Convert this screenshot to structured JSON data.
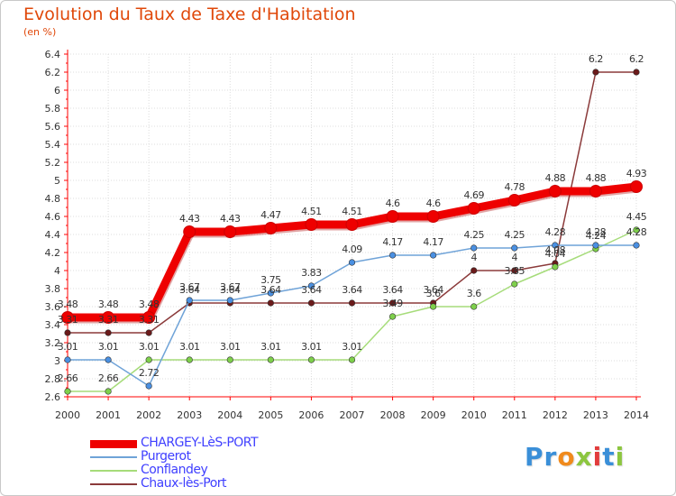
{
  "title": "Evolution du Taux de Taxe d'Habitation",
  "subtitle": "(en %)",
  "logo": {
    "letters": [
      "P",
      "r",
      "o",
      "x",
      "i",
      "t",
      "i"
    ],
    "colors": [
      "#3a8fd8",
      "#3a8fd8",
      "#f08a1c",
      "#8cc63f",
      "#e23c3c",
      "#3a8fd8",
      "#8cc63f"
    ]
  },
  "chart_data": {
    "type": "line",
    "x": [
      2000,
      2001,
      2002,
      2003,
      2004,
      2005,
      2006,
      2007,
      2008,
      2009,
      2010,
      2011,
      2012,
      2013,
      2014
    ],
    "ylim": [
      2.6,
      6.4
    ],
    "yticks": [
      "2.6",
      "2.8",
      "3",
      "3.2",
      "3.4",
      "3.6",
      "3.8",
      "4",
      "4.2",
      "4.4",
      "4.6",
      "4.8",
      "5",
      "5.2",
      "5.4",
      "5.6",
      "5.8",
      "6",
      "6.2",
      "6.4"
    ],
    "grid": true,
    "legend_position": "bottom-left",
    "series": [
      {
        "name": "CHARGEY-LèS-PORT",
        "color": "#ee0000",
        "values": [
          3.48,
          3.48,
          3.48,
          4.43,
          4.43,
          4.47,
          4.51,
          4.51,
          4.6,
          4.6,
          4.69,
          4.78,
          4.88,
          4.88,
          4.93
        ],
        "labels": [
          "3.48",
          "3.48",
          "3.48",
          "4.43",
          "4.43",
          "4.47",
          "4.51",
          "4.51",
          "4.6",
          "4.6",
          "4.69",
          "4.78",
          "4.88",
          "4.88",
          "4.93"
        ]
      },
      {
        "name": "Purgerot",
        "color": "#6fa3d8",
        "values": [
          3.01,
          3.01,
          2.72,
          3.67,
          3.67,
          3.75,
          3.83,
          4.09,
          4.17,
          4.17,
          4.25,
          4.25,
          4.28,
          4.28,
          4.28
        ],
        "labels": [
          "3.01",
          "3.01",
          "2.72",
          "3.67",
          "3.67",
          "3.75",
          "3.83",
          "4.09",
          "4.17",
          "4.17",
          "4.25",
          "4.25",
          "4.28",
          "4.28",
          "4.28"
        ]
      },
      {
        "name": "Conflandey",
        "color": "#a6dc7a",
        "values": [
          2.66,
          2.66,
          3.01,
          3.01,
          3.01,
          3.01,
          3.01,
          3.01,
          3.49,
          3.6,
          3.6,
          3.85,
          4.04,
          4.24,
          4.45
        ],
        "labels": [
          "2.66",
          "2.66",
          "3.01",
          "3.01",
          "3.01",
          "3.01",
          "3.01",
          "3.01",
          "3.49",
          "3.6",
          "3.6",
          "3.85",
          "4.04",
          "4.24",
          "4.45"
        ]
      },
      {
        "name": "Chaux-lès-Port",
        "color": "#8b3a3a",
        "values": [
          3.31,
          3.31,
          3.31,
          3.64,
          3.64,
          3.64,
          3.64,
          3.64,
          3.64,
          3.64,
          4.0,
          4.0,
          4.08,
          6.2,
          6.2
        ],
        "labels": [
          "3.31",
          "3.31",
          "3.31",
          "3.64",
          "3.64",
          "3.64",
          "3.64",
          "3.64",
          "3.64",
          "3.64",
          "4",
          "4",
          "4.08",
          "6.2",
          "6.2"
        ]
      }
    ]
  }
}
